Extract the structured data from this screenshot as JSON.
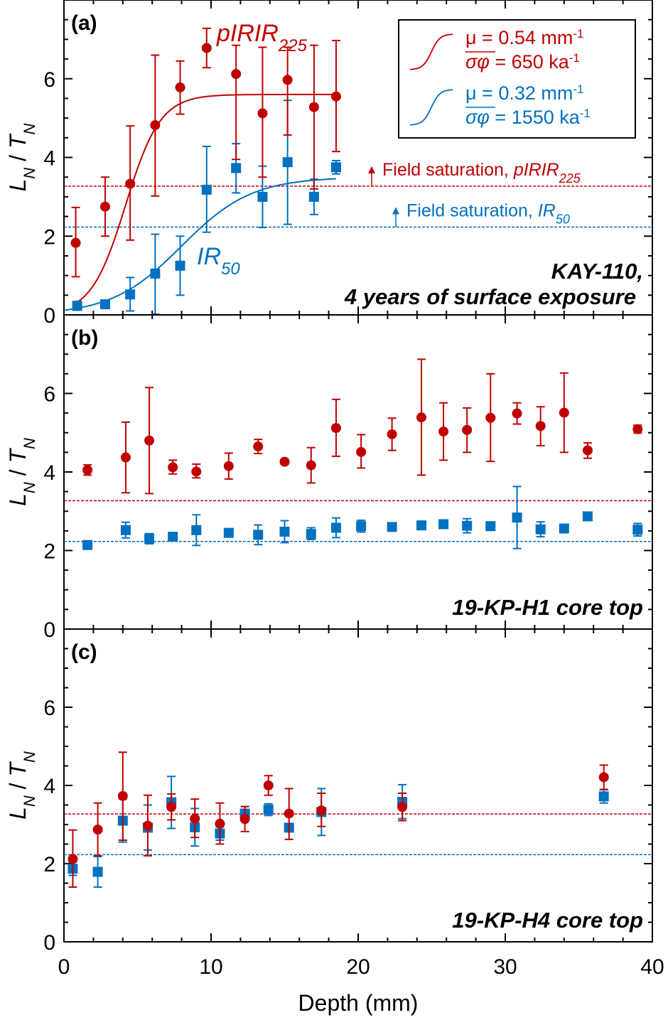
{
  "chart_data": {
    "type": "scatter",
    "xlabel": "Depth (mm)",
    "ylabel": "L_N / T_N",
    "xlim": [
      0,
      40
    ],
    "ylim": [
      0,
      8
    ],
    "x_ticks": [
      "0",
      "10",
      "20",
      "30",
      "40"
    ],
    "y_ticks": [
      "0",
      "2",
      "4",
      "6"
    ],
    "colors": {
      "red": "#c00000",
      "blue": "#0070c0"
    },
    "field_saturation": {
      "pIRIR225": 3.27,
      "IR50": 2.23
    },
    "panels": [
      {
        "id": "a",
        "label": "(a)",
        "sample_line1": "KAY-110,",
        "sample_line2": "4 years of surface exposure",
        "series_labels": {
          "red_main": "pIRIR",
          "red_sub": "225",
          "blue_main": "IR",
          "blue_sub": "50"
        },
        "saturation_labels": {
          "red_prefix": "Field saturation, ",
          "red_main": "pIRIR",
          "red_sub": "225",
          "blue_prefix": "Field saturation, ",
          "blue_main": "IR",
          "blue_sub": "50"
        },
        "legend": {
          "red_mu": "μ = 0.54 mm",
          "red_sigma": "σφ",
          "red_rate": " = 650 ka",
          "blue_mu": "μ = 0.32 mm",
          "blue_sigma": "σφ",
          "blue_rate": " = 1550 ka",
          "exponent": "-1"
        },
        "fits": {
          "red": {
            "ymax": 5.6,
            "x0": 4.2,
            "k": 0.85,
            "xmin": 0.8,
            "xmax": 18.5
          },
          "blue": {
            "ymax": 3.5,
            "x0": 8.0,
            "k": 0.42,
            "xmin": 0.0,
            "xmax": 18.5
          }
        },
        "red_series": [
          {
            "x": 0.8,
            "y": 1.83,
            "lo": 0.97,
            "hi": 2.73
          },
          {
            "x": 2.8,
            "y": 2.75,
            "lo": 2.0,
            "hi": 3.5
          },
          {
            "x": 4.5,
            "y": 3.33,
            "lo": 1.9,
            "hi": 4.8
          },
          {
            "x": 6.2,
            "y": 4.82,
            "lo": 3.02,
            "hi": 6.6
          },
          {
            "x": 7.9,
            "y": 5.78,
            "lo": 5.1,
            "hi": 6.45
          },
          {
            "x": 9.7,
            "y": 6.78,
            "lo": 6.28,
            "hi": 7.28
          },
          {
            "x": 11.7,
            "y": 6.12,
            "lo": 3.95,
            "hi": 6.85
          },
          {
            "x": 13.5,
            "y": 5.12,
            "lo": 3.5,
            "hi": 6.8
          },
          {
            "x": 15.2,
            "y": 5.97,
            "lo": 4.57,
            "hi": 6.8
          },
          {
            "x": 17.0,
            "y": 5.28,
            "lo": 3.2,
            "hi": 6.85
          },
          {
            "x": 18.5,
            "y": 5.55,
            "lo": 4.15,
            "hi": 6.97
          }
        ],
        "blue_series": [
          {
            "x": 0.9,
            "y": 0.23,
            "lo": 0.12,
            "hi": 0.34
          },
          {
            "x": 2.8,
            "y": 0.27,
            "lo": 0.17,
            "hi": 0.37
          },
          {
            "x": 4.5,
            "y": 0.52,
            "lo": 0.1,
            "hi": 0.95
          },
          {
            "x": 6.2,
            "y": 1.05,
            "lo": 0.02,
            "hi": 2.05
          },
          {
            "x": 7.9,
            "y": 1.25,
            "lo": 0.5,
            "hi": 2.0
          },
          {
            "x": 9.7,
            "y": 3.18,
            "lo": 2.1,
            "hi": 4.28
          },
          {
            "x": 11.7,
            "y": 3.73,
            "lo": 3.1,
            "hi": 4.35
          },
          {
            "x": 13.5,
            "y": 3.0,
            "lo": 2.22,
            "hi": 3.78
          },
          {
            "x": 15.2,
            "y": 3.88,
            "lo": 2.3,
            "hi": 5.45
          },
          {
            "x": 17.0,
            "y": 3.0,
            "lo": 2.55,
            "hi": 3.45
          },
          {
            "x": 18.5,
            "y": 3.75,
            "lo": 3.58,
            "hi": 3.92
          }
        ]
      },
      {
        "id": "b",
        "label": "(b)",
        "sample_line1": "19-KP-H1 core top",
        "red_series": [
          {
            "x": 1.6,
            "y": 4.05,
            "lo": 3.92,
            "hi": 4.18
          },
          {
            "x": 4.2,
            "y": 4.37,
            "lo": 3.47,
            "hi": 5.27
          },
          {
            "x": 5.8,
            "y": 4.8,
            "lo": 3.45,
            "hi": 6.15
          },
          {
            "x": 7.4,
            "y": 4.12,
            "lo": 3.95,
            "hi": 4.3
          },
          {
            "x": 9.0,
            "y": 4.01,
            "lo": 3.85,
            "hi": 4.2
          },
          {
            "x": 11.2,
            "y": 4.15,
            "lo": 3.82,
            "hi": 4.48
          },
          {
            "x": 13.2,
            "y": 4.65,
            "lo": 4.47,
            "hi": 4.83
          },
          {
            "x": 15.0,
            "y": 4.26,
            "lo": 4.2,
            "hi": 4.32
          },
          {
            "x": 16.8,
            "y": 4.17,
            "lo": 3.72,
            "hi": 4.62
          },
          {
            "x": 18.5,
            "y": 5.12,
            "lo": 4.4,
            "hi": 5.85
          },
          {
            "x": 20.2,
            "y": 4.51,
            "lo": 4.1,
            "hi": 4.95
          },
          {
            "x": 22.3,
            "y": 4.96,
            "lo": 4.55,
            "hi": 5.37
          },
          {
            "x": 24.3,
            "y": 5.39,
            "lo": 3.92,
            "hi": 6.87
          },
          {
            "x": 25.8,
            "y": 5.03,
            "lo": 4.3,
            "hi": 5.76
          },
          {
            "x": 27.4,
            "y": 5.07,
            "lo": 4.5,
            "hi": 5.63
          },
          {
            "x": 29.0,
            "y": 5.38,
            "lo": 4.27,
            "hi": 6.5
          },
          {
            "x": 30.8,
            "y": 5.49,
            "lo": 5.22,
            "hi": 5.76
          },
          {
            "x": 32.4,
            "y": 5.17,
            "lo": 4.67,
            "hi": 5.66
          },
          {
            "x": 34.0,
            "y": 5.51,
            "lo": 4.5,
            "hi": 6.52
          },
          {
            "x": 35.6,
            "y": 4.55,
            "lo": 4.35,
            "hi": 4.74
          },
          {
            "x": 39.0,
            "y": 5.09,
            "lo": 4.99,
            "hi": 5.19
          }
        ],
        "blue_series": [
          {
            "x": 1.6,
            "y": 2.14,
            "lo": 2.08,
            "hi": 2.2
          },
          {
            "x": 4.2,
            "y": 2.52,
            "lo": 2.32,
            "hi": 2.72
          },
          {
            "x": 5.8,
            "y": 2.3,
            "lo": 2.17,
            "hi": 2.43
          },
          {
            "x": 7.4,
            "y": 2.35,
            "lo": 2.25,
            "hi": 2.45
          },
          {
            "x": 9.0,
            "y": 2.52,
            "lo": 2.13,
            "hi": 2.91
          },
          {
            "x": 11.2,
            "y": 2.45,
            "lo": 2.35,
            "hi": 2.55
          },
          {
            "x": 13.2,
            "y": 2.4,
            "lo": 2.15,
            "hi": 2.65
          },
          {
            "x": 15.0,
            "y": 2.48,
            "lo": 2.2,
            "hi": 2.76
          },
          {
            "x": 16.8,
            "y": 2.42,
            "lo": 2.28,
            "hi": 2.58
          },
          {
            "x": 18.5,
            "y": 2.58,
            "lo": 2.33,
            "hi": 2.83
          },
          {
            "x": 20.2,
            "y": 2.62,
            "lo": 2.47,
            "hi": 2.77
          },
          {
            "x": 22.3,
            "y": 2.6,
            "lo": 2.6,
            "hi": 2.6
          },
          {
            "x": 24.3,
            "y": 2.64,
            "lo": 2.64,
            "hi": 2.64
          },
          {
            "x": 25.8,
            "y": 2.67,
            "lo": 2.6,
            "hi": 2.74
          },
          {
            "x": 27.4,
            "y": 2.63,
            "lo": 2.45,
            "hi": 2.81
          },
          {
            "x": 29.0,
            "y": 2.62,
            "lo": 2.62,
            "hi": 2.62
          },
          {
            "x": 30.8,
            "y": 2.84,
            "lo": 2.05,
            "hi": 3.63
          },
          {
            "x": 32.4,
            "y": 2.54,
            "lo": 2.35,
            "hi": 2.73
          },
          {
            "x": 34.0,
            "y": 2.56,
            "lo": 2.56,
            "hi": 2.56
          },
          {
            "x": 35.6,
            "y": 2.87,
            "lo": 2.87,
            "hi": 2.87
          },
          {
            "x": 39.0,
            "y": 2.53,
            "lo": 2.37,
            "hi": 2.69
          }
        ]
      },
      {
        "id": "c",
        "label": "(c)",
        "sample_line1": "19-KP-H4 core top",
        "red_series": [
          {
            "x": 0.6,
            "y": 2.12,
            "lo": 1.4,
            "hi": 2.86
          },
          {
            "x": 2.3,
            "y": 2.87,
            "lo": 2.2,
            "hi": 3.55
          },
          {
            "x": 4.0,
            "y": 3.73,
            "lo": 2.6,
            "hi": 4.85
          },
          {
            "x": 5.7,
            "y": 2.97,
            "lo": 2.2,
            "hi": 3.75
          },
          {
            "x": 7.3,
            "y": 3.45,
            "lo": 3.12,
            "hi": 3.78
          },
          {
            "x": 8.9,
            "y": 3.15,
            "lo": 2.67,
            "hi": 3.65
          },
          {
            "x": 10.6,
            "y": 3.02,
            "lo": 2.5,
            "hi": 3.55
          },
          {
            "x": 12.3,
            "y": 3.14,
            "lo": 2.82,
            "hi": 3.46
          },
          {
            "x": 13.9,
            "y": 4.0,
            "lo": 3.75,
            "hi": 4.25
          },
          {
            "x": 15.3,
            "y": 3.28,
            "lo": 2.62,
            "hi": 3.92
          },
          {
            "x": 17.5,
            "y": 3.36,
            "lo": 2.95,
            "hi": 3.8
          },
          {
            "x": 23.0,
            "y": 3.45,
            "lo": 3.1,
            "hi": 3.8
          },
          {
            "x": 36.7,
            "y": 4.21,
            "lo": 3.9,
            "hi": 4.52
          }
        ],
        "blue_series": [
          {
            "x": 0.6,
            "y": 1.87,
            "lo": 1.7,
            "hi": 2.04
          },
          {
            "x": 2.3,
            "y": 1.79,
            "lo": 1.4,
            "hi": 2.18
          },
          {
            "x": 4.0,
            "y": 3.1,
            "lo": 2.55,
            "hi": 3.65
          },
          {
            "x": 5.7,
            "y": 2.92,
            "lo": 2.35,
            "hi": 3.5
          },
          {
            "x": 7.3,
            "y": 3.57,
            "lo": 2.9,
            "hi": 4.23
          },
          {
            "x": 8.9,
            "y": 2.93,
            "lo": 2.45,
            "hi": 3.41
          },
          {
            "x": 10.6,
            "y": 2.77,
            "lo": 2.6,
            "hi": 2.94
          },
          {
            "x": 12.3,
            "y": 3.28,
            "lo": 3.1,
            "hi": 3.46
          },
          {
            "x": 13.9,
            "y": 3.38,
            "lo": 3.23,
            "hi": 3.53
          },
          {
            "x": 15.3,
            "y": 2.92,
            "lo": 2.92,
            "hi": 2.92
          },
          {
            "x": 17.5,
            "y": 3.32,
            "lo": 2.72,
            "hi": 3.92
          },
          {
            "x": 23.0,
            "y": 3.58,
            "lo": 3.15,
            "hi": 4.02
          },
          {
            "x": 36.7,
            "y": 3.72,
            "lo": 3.55,
            "hi": 3.89
          }
        ]
      }
    ]
  }
}
